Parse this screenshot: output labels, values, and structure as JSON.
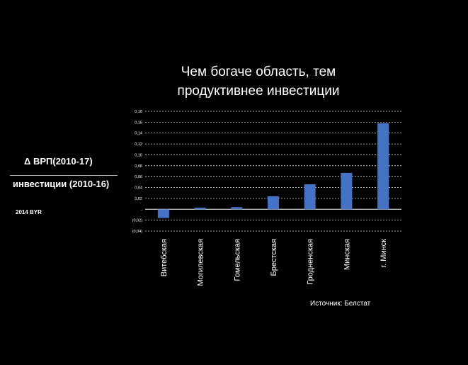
{
  "chart_data": {
    "type": "bar",
    "title": "Чем богаче область, тем продуктивнее инвестиции",
    "title_lines": [
      "Чем богаче область, тем",
      "продуктивнее инвестиции"
    ],
    "categories": [
      "Витебская",
      "Могилевская",
      "Гомельская",
      "Брестская",
      "Гродненская",
      "Минская",
      "г. Минск"
    ],
    "values": [
      -0.016,
      0.003,
      0.004,
      0.024,
      0.046,
      0.067,
      0.158
    ],
    "ylim": [
      -0.04,
      0.18
    ],
    "yticks": [
      0.18,
      0.16,
      0.14,
      0.12,
      0.1,
      0.08,
      0.06,
      0.04,
      0.02,
      0,
      -0.02,
      -0.04
    ],
    "ytick_labels": [
      "0,18",
      "0,16",
      "0,14",
      "0,12",
      "0,10",
      "0,08",
      "0,06",
      "0,04",
      "0,02",
      "-",
      "(0,02)",
      "(0,04)"
    ],
    "grid": true,
    "bar_color": "#4472C4",
    "ylabel": {
      "numerator": "Δ ВРП(2010-17)",
      "denominator": "инвестиции (2010-16)",
      "unit": "2014 BYR"
    },
    "source": "Источник: Белстат"
  }
}
